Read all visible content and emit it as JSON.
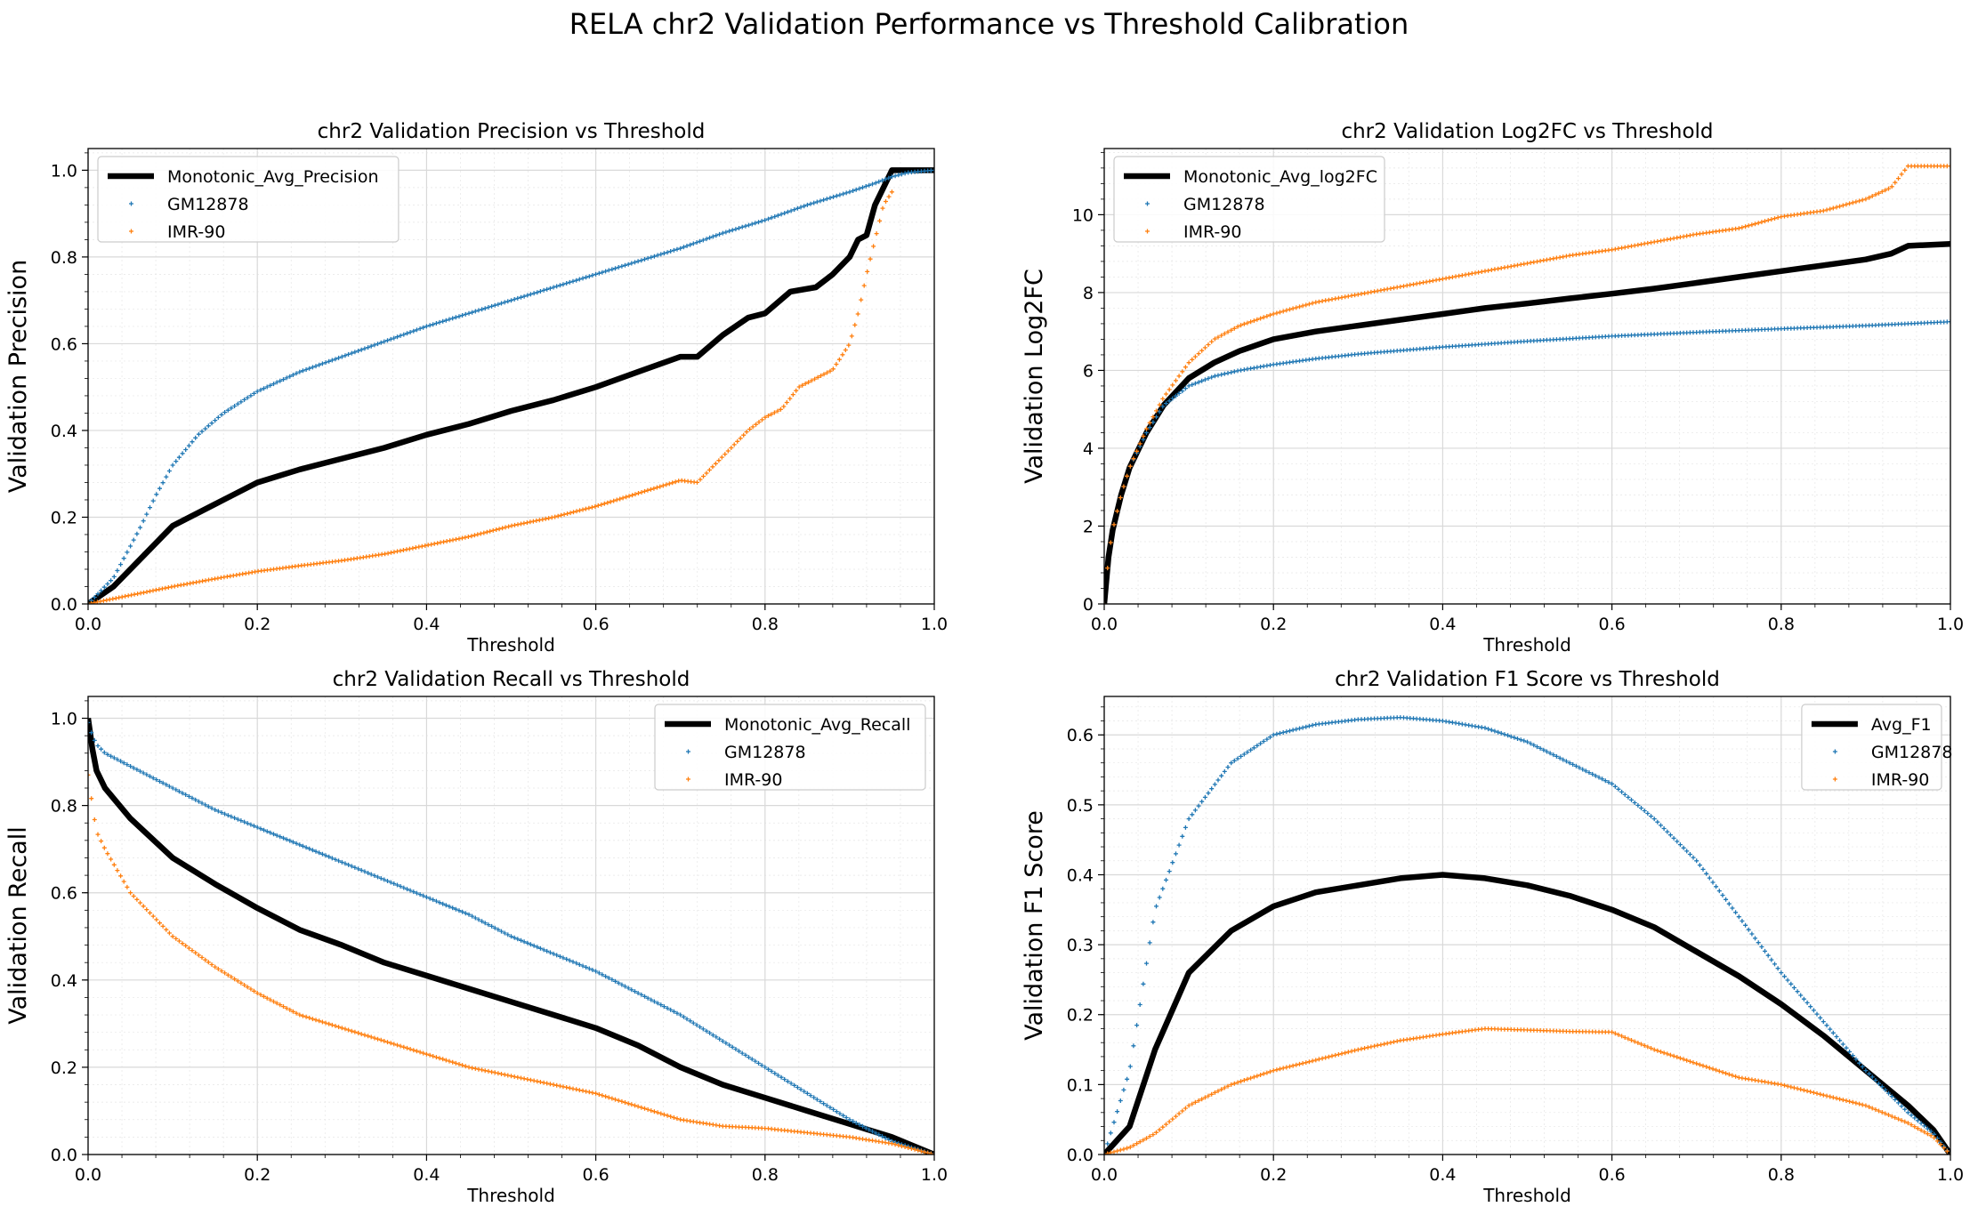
{
  "figure": {
    "suptitle": "RELA chr2 Validation Performance vs Threshold Calibration"
  },
  "colors": {
    "gm": "#1f77b4",
    "imr": "#ff7f0e",
    "avg": "#000000"
  },
  "chart_data": [
    {
      "type": "line",
      "title": "chr2 Validation Precision vs Threshold",
      "xlabel": "Threshold",
      "ylabel": "Validation Precision",
      "xlim": [
        0,
        1
      ],
      "ylim": [
        0,
        1.05
      ],
      "xticks": [
        "0.0",
        "0.2",
        "0.4",
        "0.6",
        "0.8",
        "1.0"
      ],
      "yticks": [
        "0.0",
        "0.2",
        "0.4",
        "0.6",
        "0.8",
        "1.0"
      ],
      "grid": true,
      "legend_position": "upper-left",
      "series": [
        {
          "name": "Monotonic_Avg_Precision",
          "style": "line",
          "x": [
            0,
            0.03,
            0.06,
            0.1,
            0.15,
            0.2,
            0.25,
            0.3,
            0.35,
            0.4,
            0.45,
            0.5,
            0.55,
            0.6,
            0.65,
            0.7,
            0.72,
            0.75,
            0.78,
            0.8,
            0.83,
            0.86,
            0.88,
            0.9,
            0.91,
            0.92,
            0.93,
            0.94,
            0.95,
            1.0
          ],
          "y": [
            0,
            0.04,
            0.1,
            0.18,
            0.23,
            0.28,
            0.31,
            0.335,
            0.36,
            0.39,
            0.415,
            0.445,
            0.47,
            0.5,
            0.535,
            0.57,
            0.57,
            0.62,
            0.66,
            0.67,
            0.72,
            0.73,
            0.76,
            0.8,
            0.84,
            0.85,
            0.92,
            0.96,
            1.0,
            1.0
          ]
        },
        {
          "name": "GM12878",
          "style": "points",
          "x": [
            0,
            0.03,
            0.06,
            0.08,
            0.1,
            0.13,
            0.16,
            0.2,
            0.25,
            0.3,
            0.35,
            0.4,
            0.45,
            0.5,
            0.55,
            0.6,
            0.65,
            0.7,
            0.75,
            0.8,
            0.85,
            0.9,
            0.93,
            0.95,
            0.97,
            1.0
          ],
          "y": [
            0,
            0.06,
            0.17,
            0.25,
            0.32,
            0.39,
            0.44,
            0.49,
            0.535,
            0.57,
            0.605,
            0.64,
            0.67,
            0.7,
            0.73,
            0.76,
            0.79,
            0.82,
            0.855,
            0.885,
            0.92,
            0.95,
            0.97,
            0.985,
            0.995,
            1.0
          ]
        },
        {
          "name": "IMR-90",
          "style": "points",
          "x": [
            0,
            0.05,
            0.1,
            0.15,
            0.2,
            0.25,
            0.3,
            0.35,
            0.4,
            0.45,
            0.5,
            0.55,
            0.6,
            0.65,
            0.7,
            0.72,
            0.74,
            0.76,
            0.78,
            0.8,
            0.82,
            0.84,
            0.86,
            0.88,
            0.9,
            0.91,
            0.92,
            0.94,
            0.95
          ],
          "y": [
            0,
            0.02,
            0.04,
            0.058,
            0.075,
            0.088,
            0.1,
            0.115,
            0.135,
            0.155,
            0.18,
            0.2,
            0.225,
            0.255,
            0.285,
            0.28,
            0.32,
            0.36,
            0.4,
            0.43,
            0.45,
            0.5,
            0.52,
            0.54,
            0.6,
            0.67,
            0.76,
            0.92,
            0.95
          ]
        }
      ]
    },
    {
      "type": "line",
      "title": "chr2 Validation Log2FC vs Threshold",
      "xlabel": "Threshold",
      "ylabel": "Validation Log2FC",
      "xlim": [
        0,
        1
      ],
      "ylim": [
        0,
        11.7
      ],
      "xticks": [
        "0.0",
        "0.2",
        "0.4",
        "0.6",
        "0.8",
        "1.0"
      ],
      "yticks": [
        "0",
        "2",
        "4",
        "6",
        "8",
        "10"
      ],
      "grid": true,
      "legend_position": "upper-left",
      "series": [
        {
          "name": "Monotonic_Avg_log2FC",
          "style": "line",
          "x": [
            0,
            0.005,
            0.01,
            0.02,
            0.03,
            0.05,
            0.07,
            0.1,
            0.13,
            0.16,
            0.2,
            0.25,
            0.3,
            0.35,
            0.4,
            0.45,
            0.5,
            0.55,
            0.6,
            0.65,
            0.7,
            0.75,
            0.8,
            0.85,
            0.9,
            0.93,
            0.95,
            1.0
          ],
          "y": [
            0,
            1.2,
            1.9,
            2.8,
            3.5,
            4.4,
            5.1,
            5.8,
            6.2,
            6.5,
            6.8,
            7.0,
            7.15,
            7.3,
            7.45,
            7.6,
            7.72,
            7.85,
            7.97,
            8.1,
            8.25,
            8.4,
            8.55,
            8.7,
            8.85,
            9.0,
            9.2,
            9.25
          ]
        },
        {
          "name": "GM12878",
          "style": "points",
          "x": [
            0,
            0.005,
            0.01,
            0.02,
            0.03,
            0.05,
            0.07,
            0.1,
            0.13,
            0.16,
            0.2,
            0.25,
            0.3,
            0.4,
            0.5,
            0.6,
            0.7,
            0.8,
            0.9,
            1.0
          ],
          "y": [
            0,
            1.2,
            1.9,
            2.8,
            3.5,
            4.4,
            5.1,
            5.6,
            5.85,
            6.0,
            6.15,
            6.3,
            6.42,
            6.6,
            6.75,
            6.88,
            6.98,
            7.07,
            7.15,
            7.25
          ]
        },
        {
          "name": "IMR-90",
          "style": "points",
          "x": [
            0,
            0.005,
            0.01,
            0.02,
            0.03,
            0.05,
            0.07,
            0.1,
            0.13,
            0.16,
            0.2,
            0.25,
            0.3,
            0.35,
            0.4,
            0.45,
            0.5,
            0.55,
            0.6,
            0.65,
            0.7,
            0.75,
            0.8,
            0.85,
            0.9,
            0.93,
            0.95,
            1.0
          ],
          "y": [
            0,
            1.2,
            1.9,
            2.8,
            3.5,
            4.5,
            5.3,
            6.2,
            6.8,
            7.15,
            7.45,
            7.75,
            7.95,
            8.15,
            8.35,
            8.55,
            8.75,
            8.95,
            9.1,
            9.3,
            9.5,
            9.65,
            9.95,
            10.1,
            10.4,
            10.7,
            11.25,
            11.25
          ]
        }
      ]
    },
    {
      "type": "line",
      "title": "chr2 Validation Recall vs Threshold",
      "xlabel": "Threshold",
      "ylabel": "Validation Recall",
      "xlim": [
        0,
        1
      ],
      "ylim": [
        0,
        1.05
      ],
      "xticks": [
        "0.0",
        "0.2",
        "0.4",
        "0.6",
        "0.8",
        "1.0"
      ],
      "yticks": [
        "0.0",
        "0.2",
        "0.4",
        "0.6",
        "0.8",
        "1.0"
      ],
      "grid": true,
      "legend_position": "upper-right",
      "series": [
        {
          "name": "Monotonic_Avg_Recall",
          "style": "line",
          "x": [
            0,
            0.005,
            0.01,
            0.02,
            0.05,
            0.1,
            0.15,
            0.2,
            0.25,
            0.3,
            0.35,
            0.4,
            0.45,
            0.5,
            0.55,
            0.6,
            0.65,
            0.7,
            0.75,
            0.8,
            0.85,
            0.9,
            0.95,
            1.0
          ],
          "y": [
            1.0,
            0.93,
            0.88,
            0.84,
            0.77,
            0.68,
            0.62,
            0.565,
            0.515,
            0.48,
            0.44,
            0.41,
            0.38,
            0.35,
            0.32,
            0.29,
            0.25,
            0.2,
            0.16,
            0.13,
            0.1,
            0.07,
            0.04,
            0.0
          ]
        },
        {
          "name": "GM12878",
          "style": "points",
          "x": [
            0,
            0.005,
            0.01,
            0.02,
            0.05,
            0.1,
            0.15,
            0.2,
            0.25,
            0.3,
            0.35,
            0.4,
            0.45,
            0.5,
            0.55,
            0.6,
            0.65,
            0.7,
            0.75,
            0.8,
            0.85,
            0.9,
            0.95,
            1.0
          ],
          "y": [
            0.99,
            0.96,
            0.94,
            0.92,
            0.89,
            0.84,
            0.79,
            0.75,
            0.71,
            0.67,
            0.63,
            0.59,
            0.55,
            0.5,
            0.46,
            0.42,
            0.37,
            0.32,
            0.26,
            0.2,
            0.14,
            0.08,
            0.03,
            0.0
          ]
        },
        {
          "name": "IMR-90",
          "style": "points",
          "x": [
            0,
            0.005,
            0.01,
            0.02,
            0.05,
            0.1,
            0.15,
            0.2,
            0.25,
            0.3,
            0.35,
            0.4,
            0.45,
            0.5,
            0.55,
            0.6,
            0.65,
            0.7,
            0.75,
            0.8,
            0.85,
            0.9,
            0.95,
            1.0
          ],
          "y": [
            0.87,
            0.8,
            0.74,
            0.7,
            0.6,
            0.5,
            0.43,
            0.37,
            0.32,
            0.29,
            0.26,
            0.23,
            0.2,
            0.18,
            0.16,
            0.14,
            0.11,
            0.08,
            0.065,
            0.06,
            0.05,
            0.04,
            0.025,
            0.0
          ]
        }
      ]
    },
    {
      "type": "line",
      "title": "chr2 Validation F1 Score vs Threshold",
      "xlabel": "Threshold",
      "ylabel": "Validation F1 Score",
      "xlim": [
        0,
        1
      ],
      "ylim": [
        0,
        0.655
      ],
      "xticks": [
        "0.0",
        "0.2",
        "0.4",
        "0.6",
        "0.8",
        "1.0"
      ],
      "yticks": [
        "0.0",
        "0.1",
        "0.2",
        "0.3",
        "0.4",
        "0.5",
        "0.6"
      ],
      "grid": true,
      "legend_position": "upper-right",
      "series": [
        {
          "name": "Avg_F1",
          "style": "line",
          "x": [
            0,
            0.03,
            0.06,
            0.1,
            0.15,
            0.2,
            0.25,
            0.3,
            0.35,
            0.4,
            0.45,
            0.5,
            0.55,
            0.6,
            0.65,
            0.7,
            0.75,
            0.8,
            0.85,
            0.9,
            0.95,
            0.98,
            1.0
          ],
          "y": [
            0,
            0.04,
            0.15,
            0.26,
            0.32,
            0.355,
            0.375,
            0.385,
            0.395,
            0.4,
            0.395,
            0.385,
            0.37,
            0.35,
            0.325,
            0.29,
            0.255,
            0.215,
            0.17,
            0.12,
            0.07,
            0.035,
            0.0
          ]
        },
        {
          "name": "GM12878",
          "style": "points",
          "x": [
            0,
            0.03,
            0.06,
            0.1,
            0.15,
            0.2,
            0.25,
            0.3,
            0.35,
            0.4,
            0.45,
            0.5,
            0.55,
            0.6,
            0.65,
            0.7,
            0.75,
            0.8,
            0.85,
            0.9,
            0.95,
            0.98,
            1.0
          ],
          "y": [
            0,
            0.12,
            0.35,
            0.48,
            0.56,
            0.6,
            0.615,
            0.622,
            0.625,
            0.62,
            0.61,
            0.59,
            0.56,
            0.53,
            0.48,
            0.42,
            0.34,
            0.26,
            0.19,
            0.12,
            0.06,
            0.03,
            0.0
          ]
        },
        {
          "name": "IMR-90",
          "style": "points",
          "x": [
            0,
            0.03,
            0.06,
            0.1,
            0.15,
            0.2,
            0.25,
            0.3,
            0.35,
            0.4,
            0.45,
            0.5,
            0.55,
            0.6,
            0.65,
            0.7,
            0.75,
            0.8,
            0.85,
            0.9,
            0.95,
            0.98,
            1.0
          ],
          "y": [
            0,
            0.01,
            0.03,
            0.07,
            0.1,
            0.12,
            0.135,
            0.15,
            0.163,
            0.172,
            0.18,
            0.178,
            0.176,
            0.175,
            0.15,
            0.13,
            0.11,
            0.1,
            0.085,
            0.07,
            0.045,
            0.025,
            0.0
          ]
        }
      ]
    }
  ]
}
